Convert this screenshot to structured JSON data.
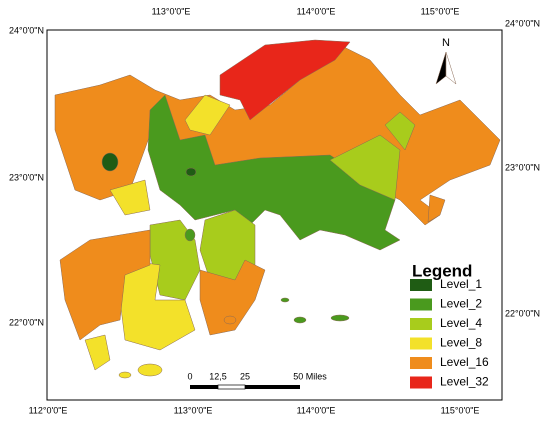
{
  "map": {
    "top_labels": [
      "113°0'0\"E",
      "114°0'0\"E",
      "115°0'0\"E"
    ],
    "bottom_labels": [
      "112°0'0\"E",
      "113°0'0\"E",
      "114°0'0\"E",
      "115°0'0\"E"
    ],
    "left_labels": [
      "24°0'0\"N",
      "23°0'0\"N",
      "22°0'0\"N"
    ],
    "right_labels": [
      "24°0'0\"N",
      "23°0'0\"N",
      "22°0'0\"N"
    ],
    "north": "N",
    "scale_labels": [
      "0",
      "12,5",
      "25",
      "50 Miles"
    ],
    "legend": {
      "title": "Legend",
      "items": [
        {
          "label": "Level_1",
          "color": "#1f5c14"
        },
        {
          "label": "Level_2",
          "color": "#4a9a1e"
        },
        {
          "label": "Level_4",
          "color": "#a8cc1c"
        },
        {
          "label": "Level_8",
          "color": "#f3e12a"
        },
        {
          "label": "Level_16",
          "color": "#ef8c1c"
        },
        {
          "label": "Level_32",
          "color": "#e8261a"
        }
      ]
    }
  }
}
